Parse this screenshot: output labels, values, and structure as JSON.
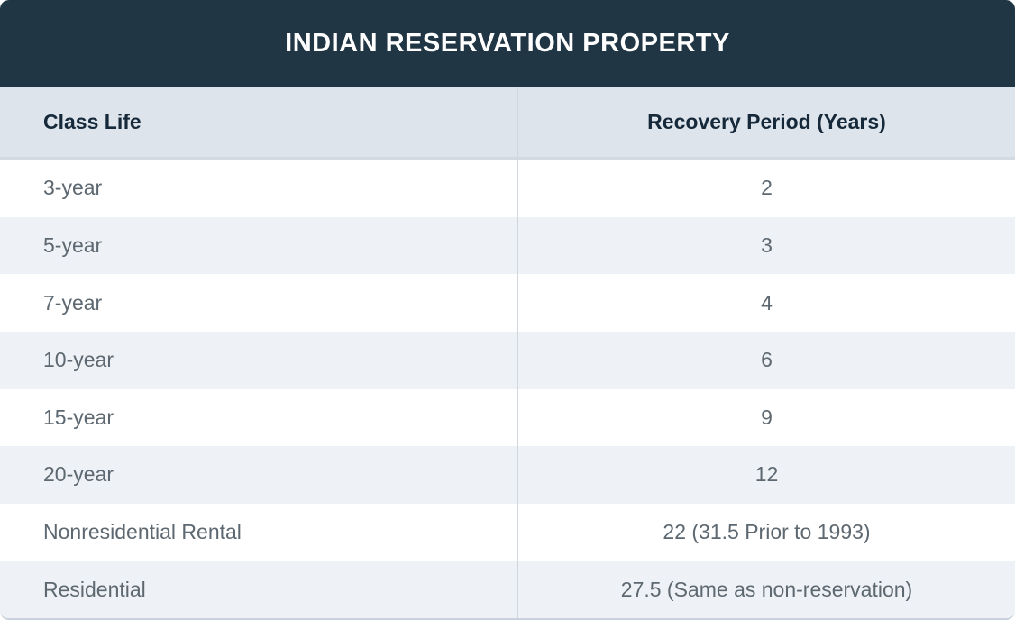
{
  "title": "INDIAN RESERVATION PROPERTY",
  "table": {
    "columns": [
      {
        "label": "Class Life"
      },
      {
        "label": "Recovery Period (Years)"
      }
    ],
    "rows": [
      {
        "class_life": "3-year",
        "recovery_period": "2"
      },
      {
        "class_life": "5-year",
        "recovery_period": "3"
      },
      {
        "class_life": "7-year",
        "recovery_period": "4"
      },
      {
        "class_life": "10-year",
        "recovery_period": "6"
      },
      {
        "class_life": "15-year",
        "recovery_period": "9"
      },
      {
        "class_life": "20-year",
        "recovery_period": "12"
      },
      {
        "class_life": "Nonresidential Rental",
        "recovery_period": "22 (31.5 Prior to 1993)"
      },
      {
        "class_life": "Residential",
        "recovery_period": "27.5 (Same as non-reservation)"
      }
    ]
  },
  "colors": {
    "title_bar_background": "#213645",
    "title_text": "#ffffff",
    "header_row_background": "#dee4eb",
    "header_text": "#16293a",
    "alt_row_background": "#eef1f5",
    "row_background": "#ffffff",
    "body_text": "#5d6871",
    "column_divider": "#d0d7de"
  }
}
